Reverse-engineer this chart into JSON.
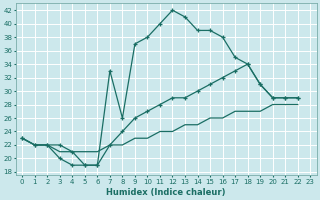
{
  "xlabel": "Humidex (Indice chaleur)",
  "bg_color": "#cce8ec",
  "grid_color": "#ffffff",
  "line_color": "#1a6e64",
  "xlim": [
    -0.5,
    23.5
  ],
  "ylim": [
    17.5,
    43
  ],
  "xticks": [
    0,
    1,
    2,
    3,
    4,
    5,
    6,
    7,
    8,
    9,
    10,
    11,
    12,
    13,
    14,
    15,
    16,
    17,
    18,
    19,
    20,
    21,
    22,
    23
  ],
  "yticks": [
    18,
    20,
    22,
    24,
    26,
    28,
    30,
    32,
    34,
    36,
    38,
    40,
    42
  ],
  "series": [
    {
      "x": [
        0,
        1,
        2,
        3,
        4,
        5,
        6,
        7,
        8,
        9,
        10,
        11,
        12,
        13,
        14,
        15,
        16,
        17,
        18,
        19,
        20,
        21,
        22
      ],
      "y": [
        23,
        22,
        22,
        22,
        21,
        19,
        19,
        33,
        26,
        37,
        38,
        40,
        42,
        41,
        39,
        39,
        38,
        35,
        34,
        31,
        29,
        29,
        29
      ],
      "marker": true
    },
    {
      "x": [
        0,
        1,
        2,
        3,
        4,
        5,
        6,
        7,
        8,
        9,
        10,
        11,
        12,
        13,
        14,
        15,
        16,
        17,
        18,
        19,
        20,
        21,
        22
      ],
      "y": [
        23,
        22,
        22,
        20,
        19,
        19,
        19,
        22,
        24,
        26,
        27,
        28,
        29,
        29,
        30,
        31,
        32,
        33,
        34,
        31,
        29,
        29,
        29
      ],
      "marker": true
    },
    {
      "x": [
        0,
        1,
        2,
        3,
        4,
        5,
        6,
        7,
        8,
        9,
        10,
        11,
        12,
        13,
        14,
        15,
        16,
        17,
        18,
        19,
        20,
        21,
        22
      ],
      "y": [
        23,
        22,
        22,
        21,
        21,
        21,
        21,
        22,
        22,
        23,
        23,
        24,
        24,
        25,
        25,
        26,
        26,
        27,
        27,
        27,
        28,
        28,
        28
      ],
      "marker": false
    }
  ]
}
